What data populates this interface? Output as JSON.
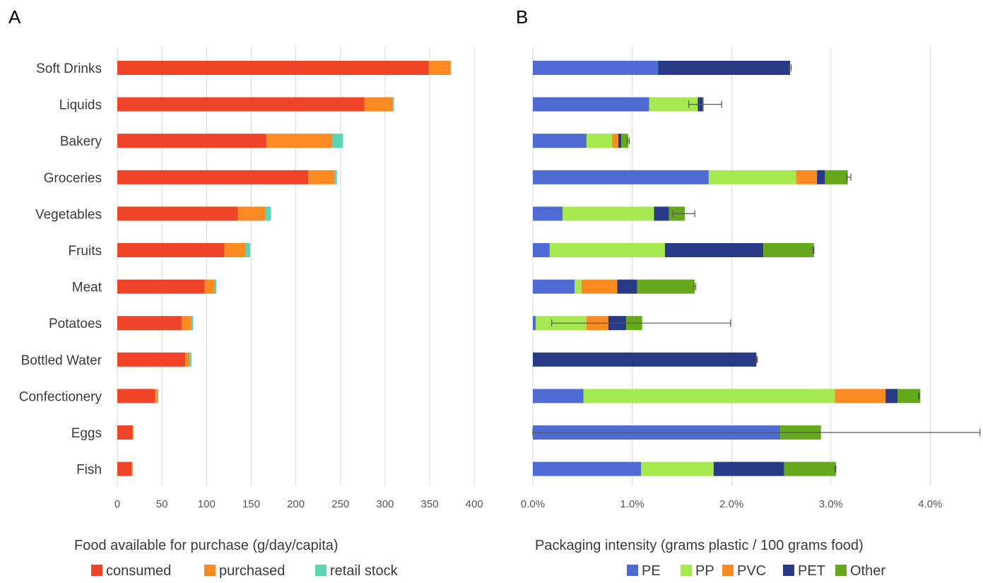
{
  "chart_data": [
    {
      "panel": "A",
      "type": "bar",
      "orientation": "horizontal",
      "stacked": true,
      "categories": [
        "Soft Drinks",
        "Liquids",
        "Bakery",
        "Groceries",
        "Vegetables",
        "Fruits",
        "Meat",
        "Potatoes",
        "Bottled Water",
        "Confectionery",
        "Eggs",
        "Fish"
      ],
      "series": [
        {
          "name": "consumed",
          "color": "#f04428",
          "values": [
            349,
            277,
            167,
            214,
            135,
            120,
            98,
            72,
            76,
            42,
            17,
            16
          ]
        },
        {
          "name": "purchased",
          "color": "#fb8a22",
          "values": [
            24,
            31,
            74,
            29,
            31,
            24,
            11,
            11,
            5,
            3,
            1,
            1
          ]
        },
        {
          "name": "retail stock",
          "color": "#5cd4b2",
          "values": [
            1,
            2,
            12,
            3,
            6,
            5,
            2,
            2,
            2,
            1,
            0.5,
            0.5
          ]
        }
      ],
      "xlabel": "Food available for purchase (g/day/capita)",
      "xlim": [
        0,
        400
      ],
      "xticks": [
        0,
        50,
        100,
        150,
        200,
        250,
        300,
        350,
        400
      ],
      "grid": true,
      "legend": "bottom"
    },
    {
      "panel": "B",
      "type": "bar",
      "orientation": "horizontal",
      "stacked": true,
      "categories": [
        "Soft Drinks",
        "Liquids",
        "Bakery",
        "Groceries",
        "Vegetables",
        "Fruits",
        "Meat",
        "Potatoes",
        "Bottled Water",
        "Confectionery",
        "Eggs",
        "Fish"
      ],
      "series": [
        {
          "name": "PE",
          "color": "#4e6bd3",
          "values": [
            1.26,
            1.17,
            0.54,
            1.77,
            0.3,
            0.17,
            0.42,
            0.03,
            0,
            0.51,
            2.49,
            1.09
          ]
        },
        {
          "name": "PP",
          "color": "#a6e850",
          "values": [
            0,
            0.49,
            0.26,
            0.88,
            0.92,
            1.16,
            0.07,
            0.51,
            0,
            2.53,
            0,
            0.73
          ]
        },
        {
          "name": "PVC",
          "color": "#fb8a22",
          "values": [
            0,
            0,
            0.06,
            0.21,
            0,
            0,
            0.36,
            0.22,
            0,
            0.51,
            0,
            0
          ]
        },
        {
          "name": "PET",
          "color": "#283a85",
          "values": [
            1.33,
            0.05,
            0.03,
            0.08,
            0.15,
            0.99,
            0.2,
            0.18,
            2.25,
            0.12,
            0,
            0.71
          ]
        },
        {
          "name": "Other",
          "color": "#66a81b",
          "values": [
            0,
            0.01,
            0.07,
            0.23,
            0.16,
            0.51,
            0.58,
            0.16,
            0,
            0.23,
            0.41,
            0.52
          ]
        }
      ],
      "error_bars": [
        {
          "category": "Soft Drinks",
          "low": 2.58,
          "high": 2.6
        },
        {
          "category": "Liquids",
          "low": 1.57,
          "high": 1.9
        },
        {
          "category": "Bakery",
          "low": 0.95,
          "high": 0.97
        },
        {
          "category": "Groceries",
          "low": 3.16,
          "high": 3.2
        },
        {
          "category": "Vegetables",
          "low": 1.41,
          "high": 1.63
        },
        {
          "category": "Fruits",
          "low": 2.82,
          "high": 2.83
        },
        {
          "category": "Meat",
          "low": 1.62,
          "high": 1.64
        },
        {
          "category": "Potatoes",
          "low": 0.19,
          "high": 1.99
        },
        {
          "category": "Bottled Water",
          "low": 2.25,
          "high": 2.26
        },
        {
          "category": "Confectionery",
          "low": 3.88,
          "high": 3.89
        },
        {
          "category": "Eggs",
          "low": 0.0,
          "high": 4.5
        },
        {
          "category": "Fish",
          "low": 3.04,
          "high": 3.05
        }
      ],
      "xlabel": "Packaging intensity (grams plastic / 100 grams food)",
      "xlim": [
        0,
        4.5
      ],
      "xticks": [
        "0.0%",
        "1.0%",
        "2.0%",
        "3.0%",
        "4.0%"
      ],
      "grid": true,
      "legend": "bottom"
    }
  ]
}
